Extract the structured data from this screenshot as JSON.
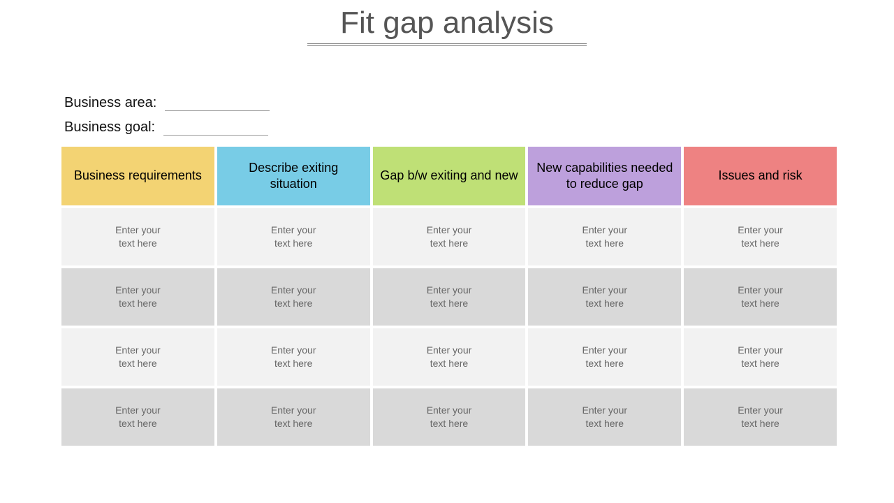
{
  "title": "Fit gap analysis",
  "title_color": "#555555",
  "title_fontsize": 44,
  "title_rule_width": 400,
  "title_rule_color": "#888888",
  "form": {
    "business_area_label": "Business area:",
    "business_goal_label": "Business goal:",
    "label_fontsize": 20,
    "line_color": "#999999",
    "line_width": 150
  },
  "table": {
    "header_fontsize": 18,
    "header_text_color": "#000000",
    "body_fontsize": 14,
    "body_text_color": "#666666",
    "row_gap": 4,
    "body_row_colors": [
      "#f2f2f2",
      "#d9d9d9",
      "#f2f2f2",
      "#d9d9d9"
    ],
    "columns": [
      {
        "label": "Business requirements",
        "color": "#f3d373"
      },
      {
        "label": "Describe exiting situation",
        "color": "#78cce6"
      },
      {
        "label": "Gap b/w exiting and new",
        "color": "#bfe076"
      },
      {
        "label": "New capabilities needed to reduce gap",
        "color": "#bda0dc"
      },
      {
        "label": "Issues and risk",
        "color": "#ee8282"
      }
    ],
    "rows": [
      [
        "Enter your text here",
        "Enter your text here",
        "Enter your text here",
        "Enter your text here",
        "Enter your text here"
      ],
      [
        "Enter your text here",
        "Enter your text here",
        "Enter your text here",
        "Enter your text here",
        "Enter your text here"
      ],
      [
        "Enter your text here",
        "Enter your text here",
        "Enter your text here",
        "Enter your text here",
        "Enter your text here"
      ],
      [
        "Enter your text here",
        "Enter your text here",
        "Enter your text here",
        "Enter your text here",
        "Enter your text here"
      ]
    ]
  }
}
